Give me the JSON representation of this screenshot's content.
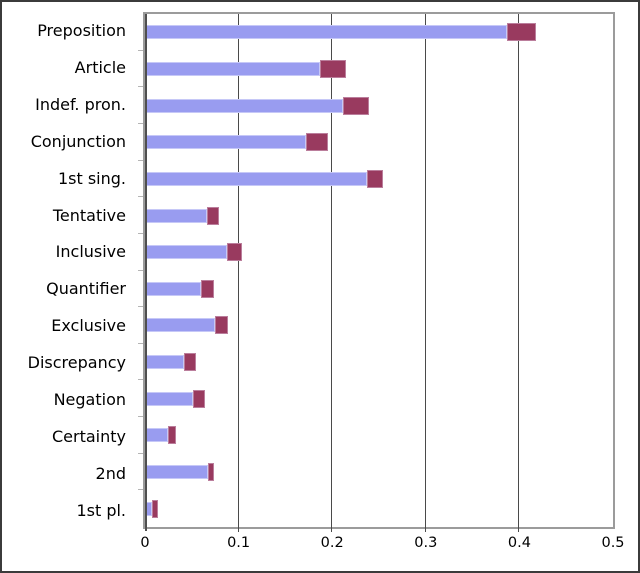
{
  "chart_data": {
    "type": "bar",
    "orientation": "horizontal",
    "stacked": true,
    "title": "",
    "xlabel": "",
    "ylabel": "",
    "grid": true,
    "legend": false,
    "xlim": [
      0,
      0.5
    ],
    "x_ticks": [
      "0",
      "0.1",
      "0.2",
      "0.3",
      "0.4",
      "0.5"
    ],
    "x_tick_values": [
      0,
      0.1,
      0.2,
      0.3,
      0.4,
      0.5
    ],
    "categories": [
      "Preposition",
      "Article",
      "Indef. pron.",
      "Conjunction",
      "1st sing.",
      "Tentative",
      "Inclusive",
      "Quantifier",
      "Exclusive",
      "Discrepancy",
      "Negation",
      "Certainty",
      "2nd",
      "1st pl."
    ],
    "series": [
      {
        "name": "primary-segment",
        "color": "#999cf0",
        "border_color": "#c6c8f7",
        "values": [
          0.387,
          0.187,
          0.212,
          0.172,
          0.237,
          0.066,
          0.088,
          0.06,
          0.075,
          0.042,
          0.051,
          0.025,
          0.067,
          0.007
        ]
      },
      {
        "name": "secondary-segment",
        "color": "#993a5f",
        "border_color": "#bb7e9c",
        "values": [
          0.031,
          0.028,
          0.027,
          0.023,
          0.017,
          0.013,
          0.016,
          0.014,
          0.014,
          0.013,
          0.013,
          0.008,
          0.007,
          0.007
        ]
      }
    ]
  },
  "style": {
    "gridline_color": "#4a4a4a",
    "axis_line_color": "#4f4f4f",
    "plot_border_color": "#9b9b9b",
    "frame_border_color": "#3b3b3b",
    "background_color": "#ffffff",
    "text_color": "#000000"
  }
}
